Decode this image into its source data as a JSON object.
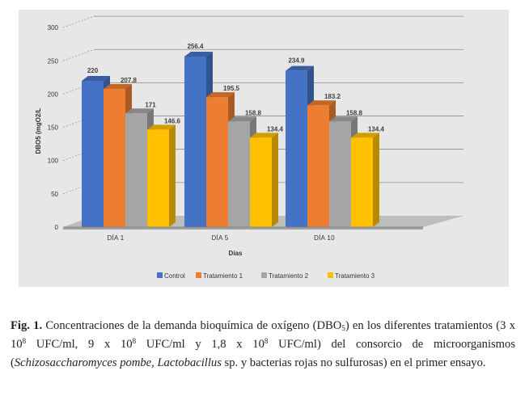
{
  "chart_data": {
    "type": "bar",
    "categories": [
      "DÍA 1",
      "DÍA 5",
      "DÍA 10"
    ],
    "series": [
      {
        "name": "Control",
        "values": [
          220,
          256.4,
          234.9
        ],
        "labels": [
          "220",
          "256.4",
          "234.9"
        ],
        "color": "#4472c4"
      },
      {
        "name": "Tratamiento 1",
        "values": [
          207.8,
          195.5,
          183.2
        ],
        "labels": [
          "207.8",
          "195.5",
          "183.2"
        ],
        "color": "#ed7d31"
      },
      {
        "name": "Tratamiento 2",
        "values": [
          171,
          158.8,
          158.8
        ],
        "labels": [
          "171",
          "158.8",
          "158.8"
        ],
        "color": "#a5a5a5"
      },
      {
        "name": "Tratamiento 3",
        "values": [
          146.6,
          134.4,
          134.4
        ],
        "labels": [
          "146.6",
          "134.4",
          "134.4"
        ],
        "color": "#ffc000"
      }
    ],
    "xlabel": "Días",
    "ylabel": "DBO5 (mgO2/L",
    "ylim": [
      0,
      300
    ],
    "yticks": [
      "0",
      "50",
      "100",
      "150",
      "200",
      "250",
      "300"
    ],
    "legend_position": "bottom",
    "grid": true,
    "style": "3d-clustered"
  },
  "caption": {
    "fig_label": "Fig. 1.",
    "part1": " Concentraciones de la demanda bioquímica de oxígeno (DBO",
    "sub5": "5",
    "part2": ") en los diferentes tratamientos (3 x 10",
    "sup1": "8",
    "part3": " UFC/ml, 9 x 10",
    "sup2": "8",
    "part4": " UFC/ml y 1,8 x 10",
    "sup3": "8",
    "part5": " UFC/ml) del consorcio de microorganismos (",
    "italic": "Schizosaccharomyces pombe, Lactobacillus",
    "part6": " sp. y bacterias rojas no sulfurosas) en el primer ensayo."
  }
}
